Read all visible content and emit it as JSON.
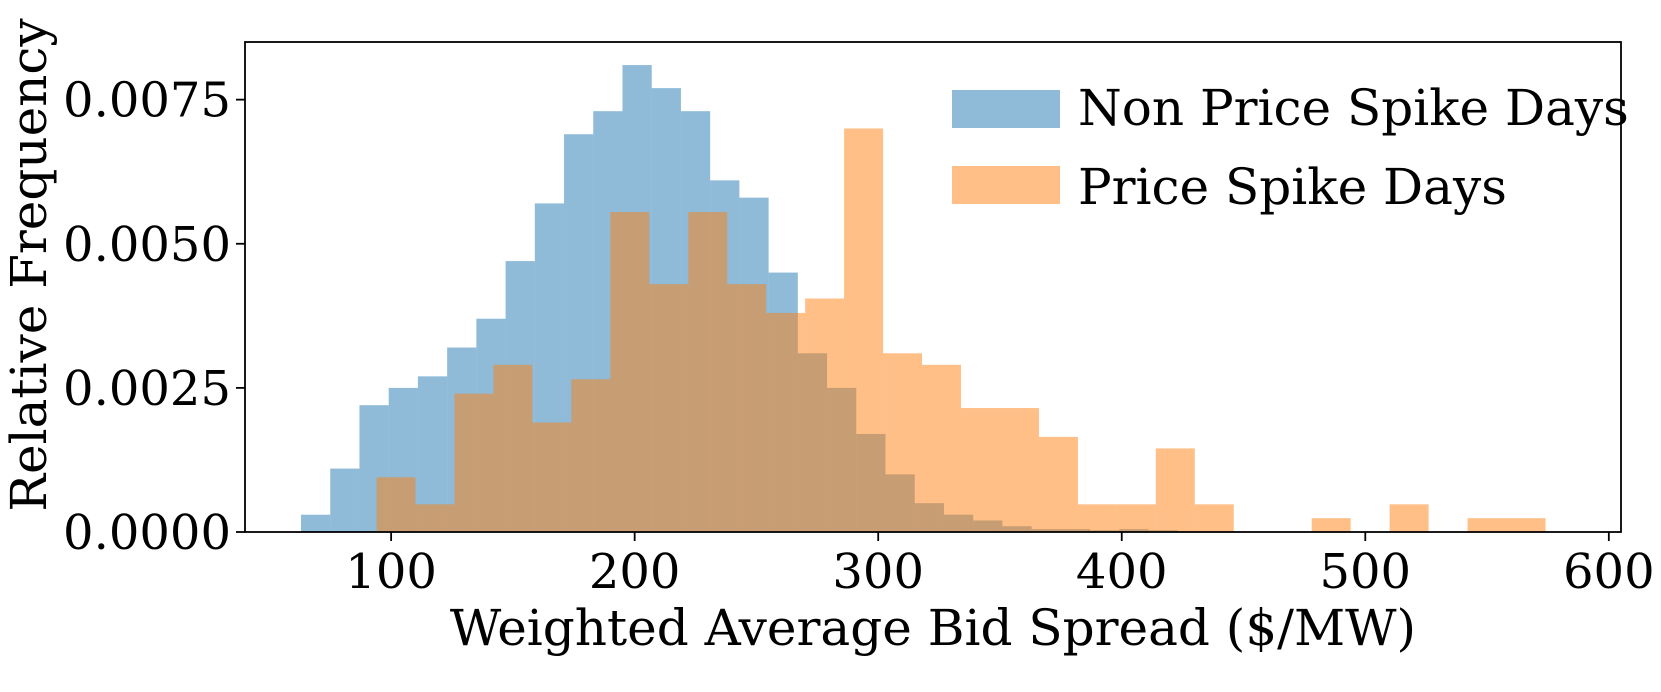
{
  "chart_data": {
    "type": "bar",
    "xlabel": "Weighted Average Bid Spread ($/MW)",
    "ylabel": "Relative Frequency",
    "xlim": [
      40,
      605
    ],
    "ylim": [
      0,
      0.0085
    ],
    "xticks": [
      100,
      200,
      300,
      400,
      500,
      600
    ],
    "xtick_labels": [
      "100",
      "200",
      "300",
      "400",
      "500",
      "600"
    ],
    "yticks": [
      0,
      0.0025,
      0.005,
      0.0075
    ],
    "ytick_labels": [
      "0.0000",
      "0.0025",
      "0.0050",
      "0.0075"
    ],
    "legend_position": "top-right",
    "grid": false,
    "series": [
      {
        "name": "Non Price Spike Days",
        "color": "#1f77b4",
        "opacity": 0.5,
        "bin_edges": [
          63,
          75,
          87,
          99,
          111,
          123,
          135,
          147,
          159,
          171,
          183,
          195,
          207,
          219,
          231,
          243,
          255,
          267,
          279,
          291,
          303,
          315,
          327,
          339,
          351,
          363,
          375,
          387,
          399,
          411,
          423
        ],
        "values": [
          0.0003,
          0.0011,
          0.0022,
          0.0025,
          0.0027,
          0.0032,
          0.0037,
          0.0047,
          0.0057,
          0.0069,
          0.0073,
          0.0081,
          0.0077,
          0.0073,
          0.0061,
          0.0058,
          0.0045,
          0.0031,
          0.0025,
          0.0017,
          0.001,
          0.0005,
          0.0003,
          0.0002,
          0.0001,
          5e-05,
          5e-05,
          3e-05,
          5e-05,
          3e-05
        ]
      },
      {
        "name": "Price Spike Days",
        "color": "#ff7f0e",
        "opacity": 0.5,
        "bin_edges": [
          94,
          110,
          126,
          142,
          158,
          174,
          190,
          206,
          222,
          238,
          254,
          270,
          286,
          302,
          318,
          334,
          350,
          366,
          382,
          398,
          414,
          430,
          446,
          462,
          478,
          494,
          510,
          526,
          542,
          558,
          574
        ],
        "values": [
          0.00095,
          0.00048,
          0.0024,
          0.0029,
          0.0019,
          0.00265,
          0.00555,
          0.0043,
          0.00555,
          0.0043,
          0.0038,
          0.00405,
          0.007,
          0.0031,
          0.0029,
          0.00215,
          0.00215,
          0.00165,
          0.00048,
          0.00048,
          0.00145,
          0.00048,
          0.0,
          0.0,
          0.00024,
          0.0,
          0.00048,
          0.0,
          0.00024,
          0.00024
        ]
      }
    ]
  }
}
